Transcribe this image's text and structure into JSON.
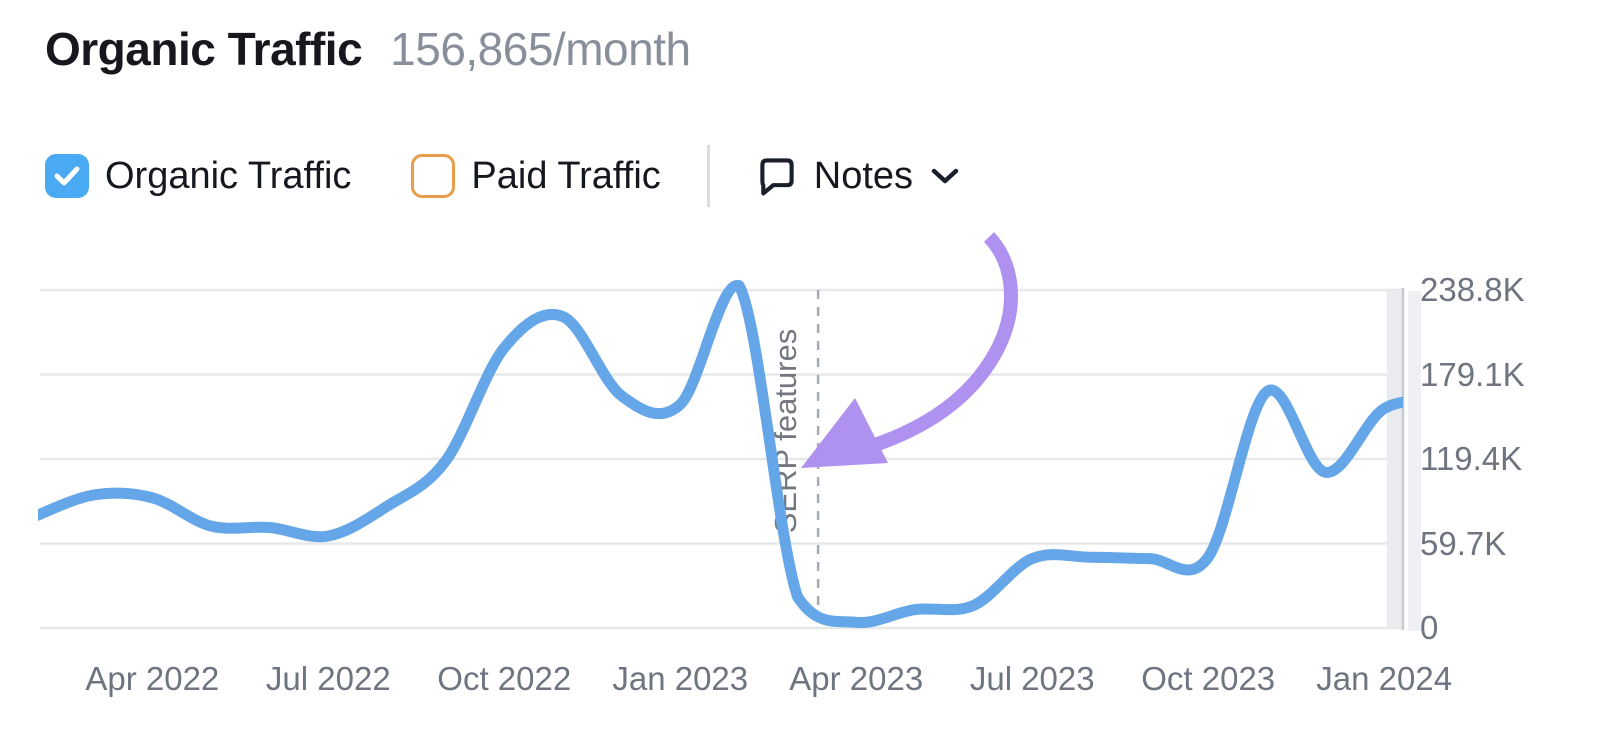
{
  "header": {
    "title": "Organic Traffic",
    "subtitle": "156,865/month"
  },
  "legend": {
    "organic": {
      "label": "Organic Traffic",
      "checked": true,
      "color": "#4aa9f3"
    },
    "paid": {
      "label": "Paid Traffic",
      "checked": false,
      "color": "#e99b4e"
    }
  },
  "notes": {
    "label": "Notes"
  },
  "chart_data": {
    "type": "line",
    "title": "Organic Traffic",
    "unit": "visits/month",
    "x": [
      "Feb 2022",
      "Mar 2022",
      "Apr 2022",
      "May 2022",
      "Jun 2022",
      "Jul 2022",
      "Aug 2022",
      "Sep 2022",
      "Oct 2022",
      "Nov 2022",
      "Dec 2022",
      "Jan 2023",
      "Feb 2023",
      "Mar 2023",
      "Apr 2023",
      "May 2023",
      "Jun 2023",
      "Jul 2023",
      "Aug 2023",
      "Sep 2023",
      "Oct 2023",
      "Nov 2023",
      "Dec 2023",
      "Jan 2024",
      "Feb 2024"
    ],
    "series": [
      {
        "name": "Organic Traffic",
        "color": "#64a6e7",
        "values_k": [
          79,
          94,
          92,
          72,
          71,
          65,
          86,
          118,
          198,
          220,
          164,
          158,
          242,
          22,
          4,
          13,
          16,
          49,
          50,
          49,
          50,
          167,
          110,
          155,
          160
        ]
      }
    ],
    "x_tick_labels": [
      "Apr 2022",
      "Jul 2022",
      "Oct 2022",
      "Jan 2023",
      "Apr 2023",
      "Jul 2023",
      "Oct 2023",
      "Jan 2024"
    ],
    "x_tick_month_indices": [
      2,
      5,
      8,
      11,
      14,
      17,
      20,
      23
    ],
    "y_tick_labels": [
      "238.8K",
      "179.1K",
      "119.4K",
      "59.7K",
      "0"
    ],
    "ylim_k": [
      0,
      238.8
    ],
    "grid": "horizontal",
    "y_axis_position": "right",
    "legend_position": "top",
    "last_period_shaded": true,
    "annotation": {
      "label": "SERP features",
      "month_offset": 13.35,
      "arrow_color": "#af92ef"
    }
  }
}
